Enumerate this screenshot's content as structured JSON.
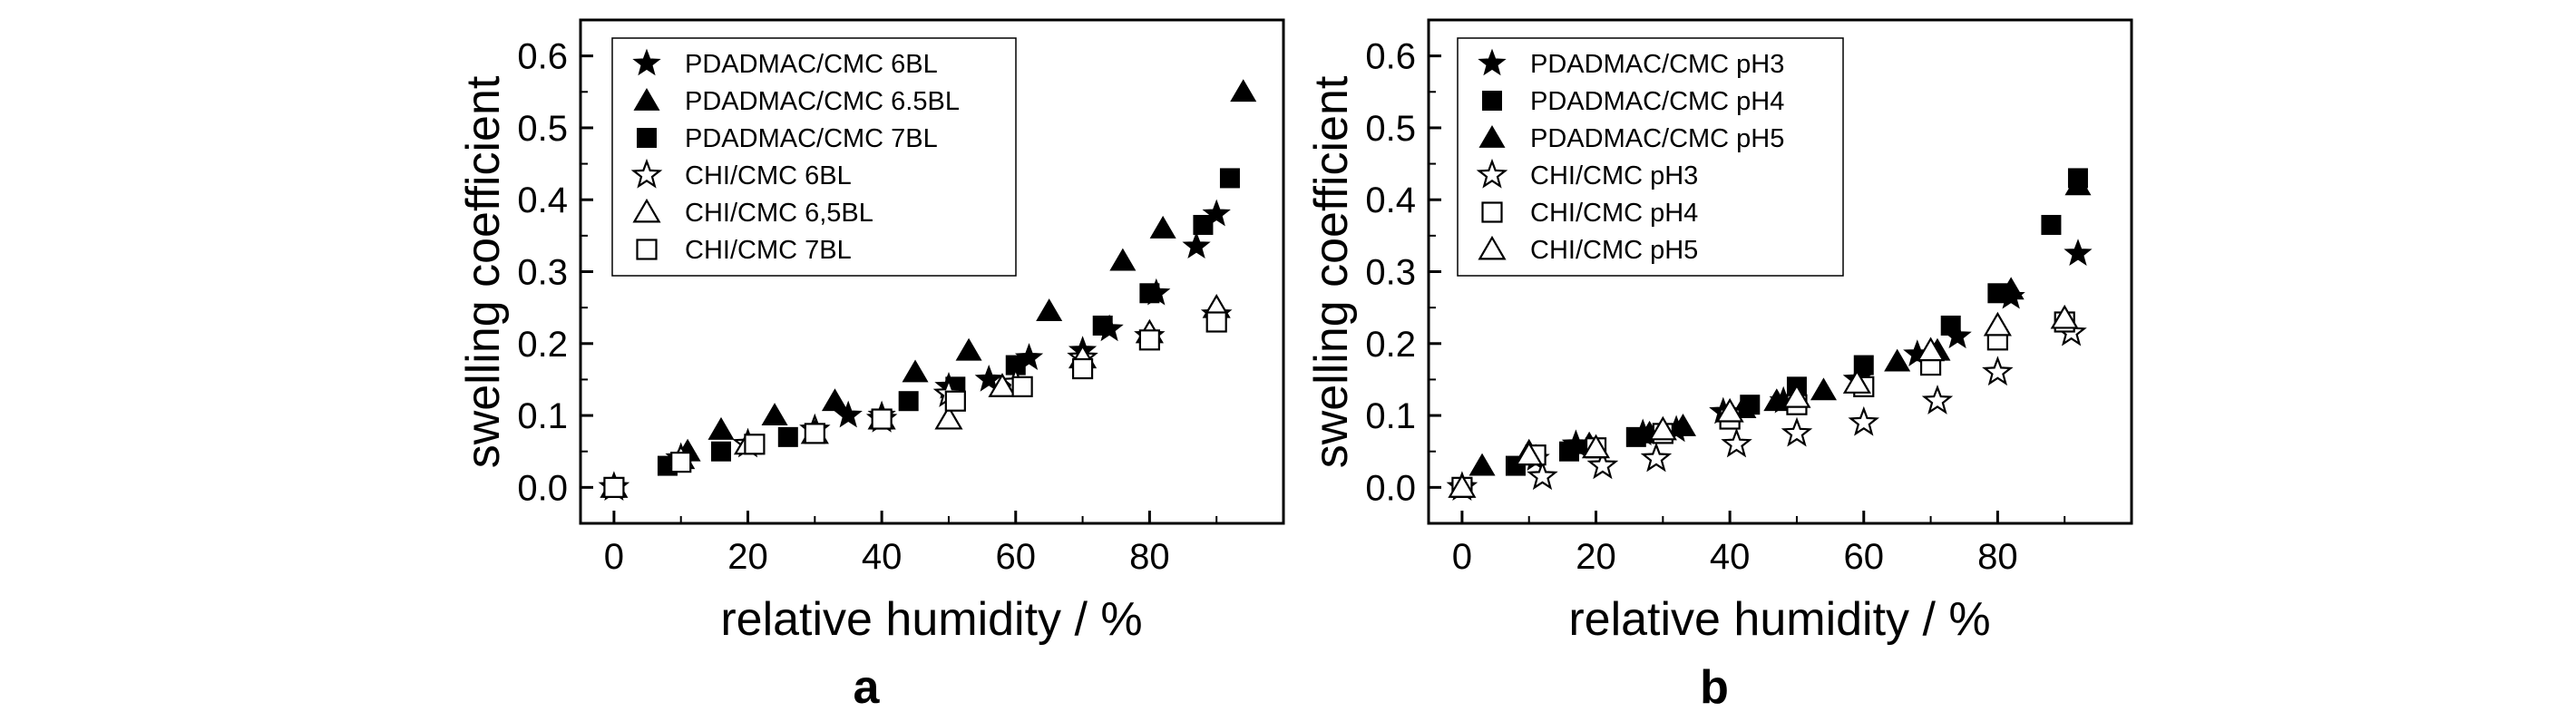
{
  "chart_data": [
    {
      "type": "scatter",
      "panel_label": "a",
      "xlabel": "relative humidity / %",
      "ylabel": "swelling coefficient",
      "xlim": [
        -5,
        100
      ],
      "ylim": [
        -0.05,
        0.65
      ],
      "xticks": [
        0,
        20,
        40,
        60,
        80
      ],
      "xtick_labels": [
        "0",
        "20",
        "40",
        "60",
        "80"
      ],
      "yticks": [
        0.0,
        0.1,
        0.2,
        0.3,
        0.4,
        0.5,
        0.6
      ],
      "ytick_labels": [
        "0.0",
        "0.1",
        "0.2",
        "0.3",
        "0.4",
        "0.5",
        "0.6"
      ],
      "legend_position": "top-left",
      "series": [
        {
          "name": "PDADMAC/CMC 6BL",
          "marker": "star",
          "filled": true,
          "x": [
            0,
            10,
            20,
            30,
            35,
            40,
            50,
            56,
            62,
            70,
            74,
            81,
            87,
            90
          ],
          "y": [
            0.0,
            0.04,
            0.06,
            0.08,
            0.1,
            0.1,
            0.14,
            0.15,
            0.18,
            0.19,
            0.22,
            0.27,
            0.335,
            0.38
          ]
        },
        {
          "name": "PDADMAC/CMC 6.5BL",
          "marker": "triangle",
          "filled": true,
          "x": [
            0,
            11,
            16,
            24,
            33,
            45,
            53,
            65,
            76,
            82,
            94
          ],
          "y": [
            0.0,
            0.05,
            0.08,
            0.1,
            0.12,
            0.16,
            0.19,
            0.245,
            0.315,
            0.36,
            0.55
          ]
        },
        {
          "name": "PDADMAC/CMC 7BL",
          "marker": "square",
          "filled": true,
          "x": [
            0,
            8,
            16,
            26,
            44,
            51,
            60,
            73,
            80,
            88,
            92
          ],
          "y": [
            0.0,
            0.03,
            0.05,
            0.07,
            0.12,
            0.14,
            0.17,
            0.225,
            0.27,
            0.365,
            0.43
          ]
        },
        {
          "name": "CHI/CMC 6BL",
          "marker": "star",
          "filled": false,
          "x": [
            0,
            10,
            20,
            30,
            40,
            50,
            60,
            70,
            80,
            90
          ],
          "y": [
            0.0,
            0.04,
            0.06,
            0.08,
            0.095,
            0.13,
            0.145,
            0.18,
            0.21,
            0.24
          ]
        },
        {
          "name": "CHI/CMC 6,5BL",
          "marker": "triangle",
          "filled": false,
          "x": [
            0,
            10,
            20,
            30,
            40,
            50,
            58,
            70,
            80,
            90
          ],
          "y": [
            0.0,
            0.04,
            0.06,
            0.075,
            0.095,
            0.095,
            0.14,
            0.18,
            0.215,
            0.25
          ]
        },
        {
          "name": "CHI/CMC 7BL",
          "marker": "square",
          "filled": false,
          "x": [
            0,
            10,
            21,
            30,
            40,
            51,
            61,
            70,
            80,
            90
          ],
          "y": [
            0.0,
            0.035,
            0.06,
            0.075,
            0.095,
            0.12,
            0.14,
            0.165,
            0.205,
            0.23
          ]
        }
      ]
    },
    {
      "type": "scatter",
      "panel_label": "b",
      "xlabel": "relative humidity / %",
      "ylabel": "swelling coefficient",
      "xlim": [
        -5,
        100
      ],
      "ylim": [
        -0.05,
        0.65
      ],
      "xticks": [
        0,
        20,
        40,
        60,
        80
      ],
      "xtick_labels": [
        "0",
        "20",
        "40",
        "60",
        "80"
      ],
      "yticks": [
        0.0,
        0.1,
        0.2,
        0.3,
        0.4,
        0.5,
        0.6
      ],
      "ytick_labels": [
        "0.0",
        "0.1",
        "0.2",
        "0.3",
        "0.4",
        "0.5",
        "0.6"
      ],
      "legend_position": "top-left",
      "series": [
        {
          "name": "PDADMAC/CMC pH3",
          "marker": "star",
          "filled": true,
          "x": [
            0,
            11,
            17,
            27,
            32,
            39,
            48,
            59,
            68,
            74,
            82,
            92
          ],
          "y": [
            0.0,
            0.04,
            0.06,
            0.075,
            0.08,
            0.105,
            0.12,
            0.15,
            0.185,
            0.21,
            0.265,
            0.325
          ]
        },
        {
          "name": "PDADMAC/CMC pH4",
          "marker": "square",
          "filled": true,
          "x": [
            0,
            8,
            16,
            26,
            43,
            50,
            60,
            73,
            80,
            88,
            92
          ],
          "y": [
            0.0,
            0.03,
            0.05,
            0.07,
            0.115,
            0.14,
            0.17,
            0.225,
            0.27,
            0.365,
            0.43
          ]
        },
        {
          "name": "PDADMAC/CMC pH5",
          "marker": "triangle",
          "filled": true,
          "x": [
            0,
            3,
            10,
            19,
            28,
            33,
            42,
            47,
            54,
            65,
            71,
            82,
            92
          ],
          "y": [
            0.0,
            0.03,
            0.05,
            0.06,
            0.075,
            0.085,
            0.11,
            0.12,
            0.135,
            0.175,
            0.19,
            0.275,
            0.42
          ]
        },
        {
          "name": "CHI/CMC pH3",
          "marker": "star",
          "filled": false,
          "x": [
            0,
            12,
            21,
            29,
            41,
            50,
            60,
            71,
            80,
            91
          ],
          "y": [
            0.0,
            0.015,
            0.03,
            0.04,
            0.06,
            0.075,
            0.09,
            0.12,
            0.16,
            0.215
          ]
        },
        {
          "name": "CHI/CMC pH4",
          "marker": "square",
          "filled": false,
          "x": [
            0,
            11,
            20,
            30,
            40,
            50,
            60,
            70,
            80,
            90
          ],
          "y": [
            0.0,
            0.045,
            0.055,
            0.075,
            0.095,
            0.115,
            0.14,
            0.17,
            0.205,
            0.23
          ]
        },
        {
          "name": "CHI/CMC pH5",
          "marker": "triangle",
          "filled": false,
          "x": [
            0,
            10,
            20,
            30,
            40,
            50,
            59,
            70,
            80,
            90
          ],
          "y": [
            0.0,
            0.045,
            0.055,
            0.08,
            0.105,
            0.125,
            0.145,
            0.19,
            0.225,
            0.235
          ]
        }
      ]
    }
  ]
}
